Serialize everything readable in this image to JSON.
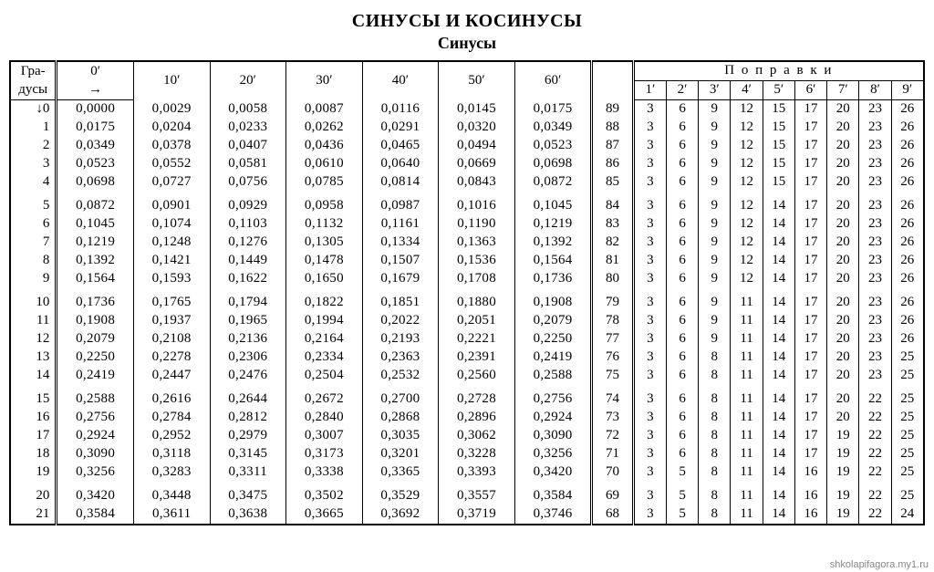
{
  "titles": {
    "main": "СИНУСЫ И КОСИНУСЫ",
    "sub": "Синусы"
  },
  "headers": {
    "deg_l1": "Гра-",
    "deg_l2": "дусы",
    "zero_min_l1": "0′",
    "zero_min_l2": "→",
    "minute_cols": [
      "10′",
      "20′",
      "30′",
      "40′",
      "50′",
      "60′"
    ],
    "corrections_title": "П о п р а в к и",
    "corrections": [
      "1′",
      "2′",
      "3′",
      "4′",
      "5′",
      "6′",
      "7′",
      "8′",
      "9′"
    ]
  },
  "deg_first_prefix": "↓",
  "rows": [
    {
      "deg": "0",
      "vals": [
        "0,0000",
        "0,0029",
        "0,0058",
        "0,0087",
        "0,0116",
        "0,0145",
        "0,0175"
      ],
      "co": "89",
      "corr": [
        "3",
        "6",
        "9",
        "12",
        "15",
        "17",
        "20",
        "23",
        "26"
      ]
    },
    {
      "deg": "1",
      "vals": [
        "0,0175",
        "0,0204",
        "0,0233",
        "0,0262",
        "0,0291",
        "0,0320",
        "0,0349"
      ],
      "co": "88",
      "corr": [
        "3",
        "6",
        "9",
        "12",
        "15",
        "17",
        "20",
        "23",
        "26"
      ]
    },
    {
      "deg": "2",
      "vals": [
        "0,0349",
        "0,0378",
        "0,0407",
        "0,0436",
        "0,0465",
        "0,0494",
        "0,0523"
      ],
      "co": "87",
      "corr": [
        "3",
        "6",
        "9",
        "12",
        "15",
        "17",
        "20",
        "23",
        "26"
      ]
    },
    {
      "deg": "3",
      "vals": [
        "0,0523",
        "0,0552",
        "0,0581",
        "0,0610",
        "0,0640",
        "0,0669",
        "0,0698"
      ],
      "co": "86",
      "corr": [
        "3",
        "6",
        "9",
        "12",
        "15",
        "17",
        "20",
        "23",
        "26"
      ]
    },
    {
      "deg": "4",
      "vals": [
        "0,0698",
        "0,0727",
        "0,0756",
        "0,0785",
        "0,0814",
        "0,0843",
        "0,0872"
      ],
      "co": "85",
      "corr": [
        "3",
        "6",
        "9",
        "12",
        "15",
        "17",
        "20",
        "23",
        "26"
      ]
    },
    {
      "deg": "5",
      "vals": [
        "0,0872",
        "0,0901",
        "0,0929",
        "0,0958",
        "0,0987",
        "0,1016",
        "0,1045"
      ],
      "co": "84",
      "corr": [
        "3",
        "6",
        "9",
        "12",
        "14",
        "17",
        "20",
        "23",
        "26"
      ]
    },
    {
      "deg": "6",
      "vals": [
        "0,1045",
        "0,1074",
        "0,1103",
        "0,1132",
        "0,1161",
        "0,1190",
        "0,1219"
      ],
      "co": "83",
      "corr": [
        "3",
        "6",
        "9",
        "12",
        "14",
        "17",
        "20",
        "23",
        "26"
      ]
    },
    {
      "deg": "7",
      "vals": [
        "0,1219",
        "0,1248",
        "0,1276",
        "0,1305",
        "0,1334",
        "0,1363",
        "0,1392"
      ],
      "co": "82",
      "corr": [
        "3",
        "6",
        "9",
        "12",
        "14",
        "17",
        "20",
        "23",
        "26"
      ]
    },
    {
      "deg": "8",
      "vals": [
        "0,1392",
        "0,1421",
        "0,1449",
        "0,1478",
        "0,1507",
        "0,1536",
        "0,1564"
      ],
      "co": "81",
      "corr": [
        "3",
        "6",
        "9",
        "12",
        "14",
        "17",
        "20",
        "23",
        "26"
      ]
    },
    {
      "deg": "9",
      "vals": [
        "0,1564",
        "0,1593",
        "0,1622",
        "0,1650",
        "0,1679",
        "0,1708",
        "0,1736"
      ],
      "co": "80",
      "corr": [
        "3",
        "6",
        "9",
        "12",
        "14",
        "17",
        "20",
        "23",
        "26"
      ]
    },
    {
      "deg": "10",
      "vals": [
        "0,1736",
        "0,1765",
        "0,1794",
        "0,1822",
        "0,1851",
        "0,1880",
        "0,1908"
      ],
      "co": "79",
      "corr": [
        "3",
        "6",
        "9",
        "11",
        "14",
        "17",
        "20",
        "23",
        "26"
      ]
    },
    {
      "deg": "11",
      "vals": [
        "0,1908",
        "0,1937",
        "0,1965",
        "0,1994",
        "0,2022",
        "0,2051",
        "0,2079"
      ],
      "co": "78",
      "corr": [
        "3",
        "6",
        "9",
        "11",
        "14",
        "17",
        "20",
        "23",
        "26"
      ]
    },
    {
      "deg": "12",
      "vals": [
        "0,2079",
        "0,2108",
        "0,2136",
        "0,2164",
        "0,2193",
        "0,2221",
        "0,2250"
      ],
      "co": "77",
      "corr": [
        "3",
        "6",
        "9",
        "11",
        "14",
        "17",
        "20",
        "23",
        "26"
      ]
    },
    {
      "deg": "13",
      "vals": [
        "0,2250",
        "0,2278",
        "0,2306",
        "0,2334",
        "0,2363",
        "0,2391",
        "0,2419"
      ],
      "co": "76",
      "corr": [
        "3",
        "6",
        "8",
        "11",
        "14",
        "17",
        "20",
        "23",
        "25"
      ]
    },
    {
      "deg": "14",
      "vals": [
        "0,2419",
        "0,2447",
        "0,2476",
        "0,2504",
        "0,2532",
        "0,2560",
        "0,2588"
      ],
      "co": "75",
      "corr": [
        "3",
        "6",
        "8",
        "11",
        "14",
        "17",
        "20",
        "23",
        "25"
      ]
    },
    {
      "deg": "15",
      "vals": [
        "0,2588",
        "0,2616",
        "0,2644",
        "0,2672",
        "0,2700",
        "0,2728",
        "0,2756"
      ],
      "co": "74",
      "corr": [
        "3",
        "6",
        "8",
        "11",
        "14",
        "17",
        "20",
        "22",
        "25"
      ]
    },
    {
      "deg": "16",
      "vals": [
        "0,2756",
        "0,2784",
        "0,2812",
        "0,2840",
        "0,2868",
        "0,2896",
        "0,2924"
      ],
      "co": "73",
      "corr": [
        "3",
        "6",
        "8",
        "11",
        "14",
        "17",
        "20",
        "22",
        "25"
      ]
    },
    {
      "deg": "17",
      "vals": [
        "0,2924",
        "0,2952",
        "0,2979",
        "0,3007",
        "0,3035",
        "0,3062",
        "0,3090"
      ],
      "co": "72",
      "corr": [
        "3",
        "6",
        "8",
        "11",
        "14",
        "17",
        "19",
        "22",
        "25"
      ]
    },
    {
      "deg": "18",
      "vals": [
        "0,3090",
        "0,3118",
        "0,3145",
        "0,3173",
        "0,3201",
        "0,3228",
        "0,3256"
      ],
      "co": "71",
      "corr": [
        "3",
        "6",
        "8",
        "11",
        "14",
        "17",
        "19",
        "22",
        "25"
      ]
    },
    {
      "deg": "19",
      "vals": [
        "0,3256",
        "0,3283",
        "0,3311",
        "0,3338",
        "0,3365",
        "0,3393",
        "0,3420"
      ],
      "co": "70",
      "corr": [
        "3",
        "5",
        "8",
        "11",
        "14",
        "16",
        "19",
        "22",
        "25"
      ]
    },
    {
      "deg": "20",
      "vals": [
        "0,3420",
        "0,3448",
        "0,3475",
        "0,3502",
        "0,3529",
        "0,3557",
        "0,3584"
      ],
      "co": "69",
      "corr": [
        "3",
        "5",
        "8",
        "11",
        "14",
        "16",
        "19",
        "22",
        "25"
      ]
    },
    {
      "deg": "21",
      "vals": [
        "0,3584",
        "0,3611",
        "0,3638",
        "0,3665",
        "0,3692",
        "0,3719",
        "0,3746"
      ],
      "co": "68",
      "corr": [
        "3",
        "5",
        "8",
        "11",
        "14",
        "16",
        "19",
        "22",
        "24"
      ]
    }
  ],
  "watermark": "shkolapifagora.my1.ru",
  "style": {
    "page_bg": "#ffffff",
    "text_color": "#000000",
    "border_color": "#000000",
    "font_family": "Times New Roman",
    "title_fontsize_pt": 15,
    "subtitle_fontsize_pt": 14,
    "body_fontsize_pt": 11,
    "watermark_color": "#888888",
    "row_group_size": 5
  }
}
